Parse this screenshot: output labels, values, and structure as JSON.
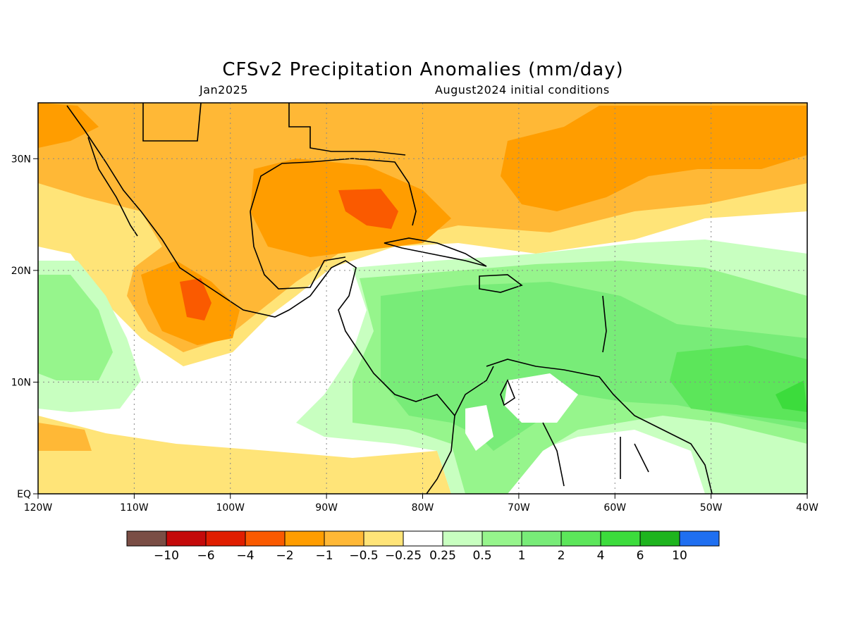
{
  "title": "CFSv2 Precipitation Anomalies (mm/day)",
  "subtitle_left": "Jan2025",
  "subtitle_right": "August2024 initial conditions",
  "map": {
    "lon_range": [
      -120,
      -40
    ],
    "lat_range": [
      0,
      35
    ],
    "x_ticks": [
      {
        "lon": -120,
        "label": "120W"
      },
      {
        "lon": -110,
        "label": "110W"
      },
      {
        "lon": -100,
        "label": "100W"
      },
      {
        "lon": -90,
        "label": "90W"
      },
      {
        "lon": -80,
        "label": "80W"
      },
      {
        "lon": -70,
        "label": "70W"
      },
      {
        "lon": -60,
        "label": "60W"
      },
      {
        "lon": -50,
        "label": "50W"
      },
      {
        "lon": -40,
        "label": "40W"
      }
    ],
    "y_ticks": [
      {
        "lat": 0,
        "label": "EQ"
      },
      {
        "lat": 10,
        "label": "10N"
      },
      {
        "lat": 20,
        "label": "20N"
      },
      {
        "lat": 30,
        "label": "30N"
      }
    ],
    "colors": {
      "n10": "#7a4e45",
      "n6": "#c40a0a",
      "n4": "#e01e00",
      "n2": "#fa5a00",
      "n1": "#ff9d00",
      "n05": "#ffb836",
      "n025": "#ffe478",
      "zero": "#ffffff",
      "p025": "#c8ffc0",
      "p05": "#96f58c",
      "p1": "#78ec78",
      "p2": "#5ce65a",
      "p4": "#3cdc3c",
      "p6": "#1eb41e",
      "p10": "#1450d2"
    }
  },
  "colorbar": {
    "colors": [
      "#7a4e45",
      "#c40a0a",
      "#e01e00",
      "#fa5a00",
      "#ff9d00",
      "#ffb836",
      "#ffe478",
      "#ffffff",
      "#c8ffc0",
      "#96f58c",
      "#78ec78",
      "#5ce65a",
      "#3cdc3c",
      "#1eb41e",
      "#1f6ff0"
    ],
    "labels": [
      "−10",
      "−6",
      "−4",
      "−2",
      "−1",
      "−0.5",
      "−0.25",
      "0.25",
      "0.5",
      "1",
      "2",
      "4",
      "6",
      "10"
    ]
  }
}
